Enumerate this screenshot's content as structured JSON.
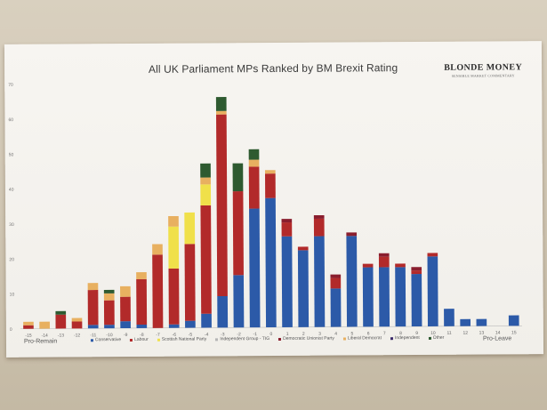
{
  "page": {
    "title": "All UK Parliament MPs Ranked by BM Brexit Rating",
    "brand_name": "BLONDE MONEY",
    "brand_tagline": "SENSIBLE MARKET COMMENTARY"
  },
  "chart_data": {
    "type": "bar",
    "stacked": true,
    "title": "All UK Parliament MPs Ranked by BM Brexit Rating",
    "xlabel": "",
    "ylabel": "",
    "x_left_label": "Pro-Remain",
    "x_right_label": "Pro-Leave",
    "ylim": [
      0,
      70
    ],
    "yticks": [
      0,
      10,
      20,
      30,
      40,
      50,
      60,
      70
    ],
    "grid": false,
    "legend_position": "bottom",
    "categories": [
      "-15",
      "-14",
      "-13",
      "-12",
      "-11",
      "-10",
      "-9",
      "-8",
      "-7",
      "-6",
      "-5",
      "-4",
      "-3",
      "-2",
      "-1",
      "0",
      "1",
      "2",
      "3",
      "4",
      "5",
      "6",
      "7",
      "8",
      "9",
      "10",
      "11",
      "12",
      "13",
      "14",
      "15"
    ],
    "series": [
      {
        "name": "Conservative",
        "color": "#2c5aa8",
        "values": [
          0,
          0,
          0,
          0,
          1,
          1,
          2,
          1,
          0,
          1,
          2,
          4,
          9,
          15,
          34,
          37,
          26,
          22,
          26,
          11,
          26,
          17,
          17,
          17,
          15,
          20,
          5,
          2,
          2,
          0,
          3
        ]
      },
      {
        "name": "Labour",
        "color": "#b22a2a",
        "values": [
          1,
          0,
          4,
          2,
          10,
          7,
          7,
          13,
          21,
          16,
          22,
          31,
          52,
          24,
          12,
          7,
          4,
          1,
          5,
          3,
          0,
          1,
          3,
          1,
          1,
          1,
          0,
          0,
          0,
          0,
          0
        ]
      },
      {
        "name": "Scottish National Party",
        "color": "#f0e04a",
        "values": [
          0,
          0,
          0,
          0,
          0,
          0,
          0,
          0,
          0,
          12,
          9,
          6,
          0,
          0,
          0,
          0,
          0,
          0,
          0,
          0,
          0,
          0,
          0,
          0,
          0,
          0,
          0,
          0,
          0,
          0,
          0
        ]
      },
      {
        "name": "Independent Group - TIG",
        "color": "#b5b5b5",
        "values": [
          0,
          0,
          0,
          0,
          0,
          0,
          0,
          0,
          0,
          0,
          0,
          0,
          0,
          0,
          0,
          0,
          0,
          0,
          0,
          0,
          0,
          0,
          0,
          0,
          0,
          0,
          0,
          0,
          0,
          0,
          0
        ]
      },
      {
        "name": "Democratic Unionist Party",
        "color": "#8a1e2e",
        "values": [
          0,
          0,
          0,
          0,
          0,
          0,
          0,
          0,
          0,
          0,
          0,
          0,
          0,
          0,
          0,
          0,
          1,
          0,
          1,
          1,
          1,
          0,
          1,
          0,
          1,
          0,
          0,
          0,
          0,
          0,
          0
        ]
      },
      {
        "name": "Liberal Democrat",
        "color": "#e8b060",
        "values": [
          1,
          2,
          0,
          1,
          2,
          2,
          3,
          2,
          3,
          3,
          0,
          2,
          1,
          0,
          2,
          1,
          0,
          0,
          0,
          0,
          0,
          0,
          0,
          0,
          0,
          0,
          0,
          0,
          0,
          0,
          0
        ]
      },
      {
        "name": "Independent",
        "color": "#3a2a6a",
        "values": [
          0,
          0,
          0,
          0,
          0,
          0,
          0,
          0,
          0,
          0,
          0,
          0,
          0,
          0,
          0,
          0,
          0,
          0,
          0,
          0,
          0,
          0,
          0,
          0,
          0,
          0,
          0,
          0,
          0,
          0,
          0
        ]
      },
      {
        "name": "Other",
        "color": "#2e5a30",
        "values": [
          0,
          0,
          1,
          0,
          0,
          1,
          0,
          0,
          0,
          0,
          0,
          4,
          4,
          8,
          3,
          0,
          0,
          0,
          0,
          0,
          0,
          0,
          0,
          0,
          0,
          0,
          0,
          0,
          0,
          0,
          0
        ]
      }
    ]
  }
}
